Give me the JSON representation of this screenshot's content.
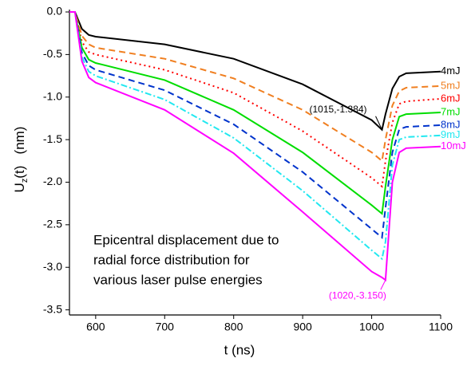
{
  "chart_data": {
    "type": "line",
    "ylabel_parts": [
      "U",
      "z",
      "(t)   (nm)"
    ],
    "xlabel": "t   (ns)",
    "text_block": [
      "Epicentral displacement due to",
      "radial force distribution for",
      "various laser pulse energies"
    ],
    "x": [
      562,
      570,
      580,
      590,
      600,
      700,
      800,
      900,
      1000,
      1015,
      1020,
      1030,
      1040,
      1050,
      1100
    ],
    "series": [
      {
        "name": "4mJ",
        "color": "#000000",
        "dash": "solid",
        "values": [
          0,
          0,
          -0.2,
          -0.27,
          -0.29,
          -0.38,
          -0.55,
          -0.85,
          -1.27,
          -1.384,
          -1.2,
          -0.9,
          -0.76,
          -0.72,
          -0.7
        ]
      },
      {
        "name": "5mJ",
        "color": "#f07f20",
        "dash": "dash",
        "values": [
          0,
          0,
          -0.28,
          -0.38,
          -0.42,
          -0.55,
          -0.78,
          -1.15,
          -1.65,
          -1.75,
          -1.5,
          -1.1,
          -0.93,
          -0.89,
          -0.87
        ]
      },
      {
        "name": "6mJ",
        "color": "#ff0000",
        "dash": "dot",
        "values": [
          0,
          0,
          -0.35,
          -0.47,
          -0.5,
          -0.68,
          -0.95,
          -1.4,
          -1.95,
          -2.05,
          -1.75,
          -1.3,
          -1.08,
          -1.05,
          -1.02
        ]
      },
      {
        "name": "7mJ",
        "color": "#00dd00",
        "dash": "solid",
        "values": [
          0,
          0,
          -0.42,
          -0.56,
          -0.6,
          -0.8,
          -1.15,
          -1.65,
          -2.27,
          -2.37,
          -2.05,
          -1.5,
          -1.23,
          -1.2,
          -1.18
        ]
      },
      {
        "name": "8mJ",
        "color": "#0033cc",
        "dash": "dash",
        "values": [
          0,
          0,
          -0.48,
          -0.63,
          -0.68,
          -0.92,
          -1.32,
          -1.88,
          -2.55,
          -2.65,
          -2.3,
          -1.65,
          -1.38,
          -1.35,
          -1.33
        ]
      },
      {
        "name": "9mJ",
        "color": "#22e8f0",
        "dash": "dashdot",
        "values": [
          0,
          0,
          -0.53,
          -0.7,
          -0.75,
          -1.03,
          -1.48,
          -2.1,
          -2.8,
          -2.9,
          -2.7,
          -1.8,
          -1.5,
          -1.47,
          -1.45
        ]
      },
      {
        "name": "10mJ",
        "color": "#ff00ff",
        "dash": "solid",
        "values": [
          0,
          0,
          -0.58,
          -0.77,
          -0.83,
          -1.15,
          -1.66,
          -2.35,
          -3.05,
          -3.12,
          -3.15,
          -2.0,
          -1.65,
          -1.6,
          -1.58
        ]
      }
    ],
    "annotations": [
      {
        "text": "(1015,-1.384)",
        "x": 1015,
        "y": -1.384,
        "color": "#000000"
      },
      {
        "text": "(1020,-3.150)",
        "x": 1020,
        "y": -3.15,
        "color": "#ff00ff"
      }
    ],
    "xlim": [
      562,
      1100
    ],
    "ylim": [
      -3.56,
      0
    ],
    "xticks": [
      600,
      700,
      800,
      900,
      1000,
      1100
    ],
    "yticks": [
      {
        "value": 0,
        "label": "0.0"
      },
      -0.5,
      {
        "value": -1,
        "label": "-1.0"
      },
      -1.5,
      {
        "value": -2,
        "label": "-2.0"
      },
      -2.5,
      {
        "value": -3,
        "label": "-3.0"
      },
      -3.5
    ]
  }
}
